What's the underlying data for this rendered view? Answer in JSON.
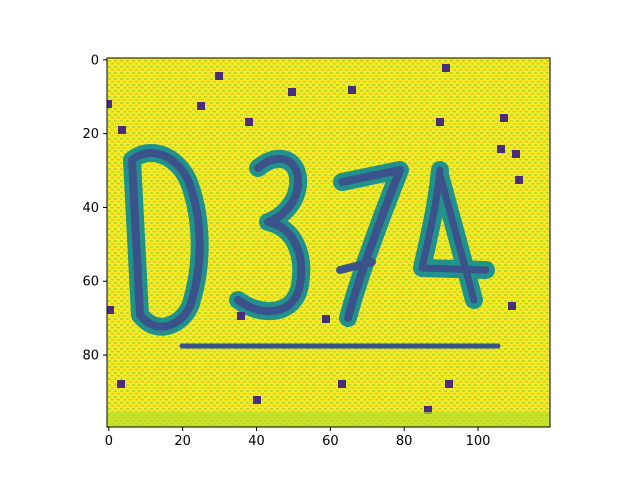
{
  "chart_data": {
    "type": "heatmap",
    "title": "",
    "xlabel": "",
    "ylabel": "",
    "xlim": [
      -0.5,
      119.5
    ],
    "ylim": [
      99.5,
      -0.5
    ],
    "x_ticks": [
      0,
      20,
      40,
      60,
      80,
      100
    ],
    "y_ticks": [
      0,
      20,
      40,
      60,
      80
    ],
    "colormap": "viridis",
    "colors": {
      "background": "#fde725",
      "light": "#b5de2b",
      "mid": "#21918c",
      "dark": "#3b528b",
      "darkest": "#472d7b"
    },
    "image_text": "D374",
    "content": "CAPTCHA image rendered as a 120 x 100 pixel grid"
  }
}
